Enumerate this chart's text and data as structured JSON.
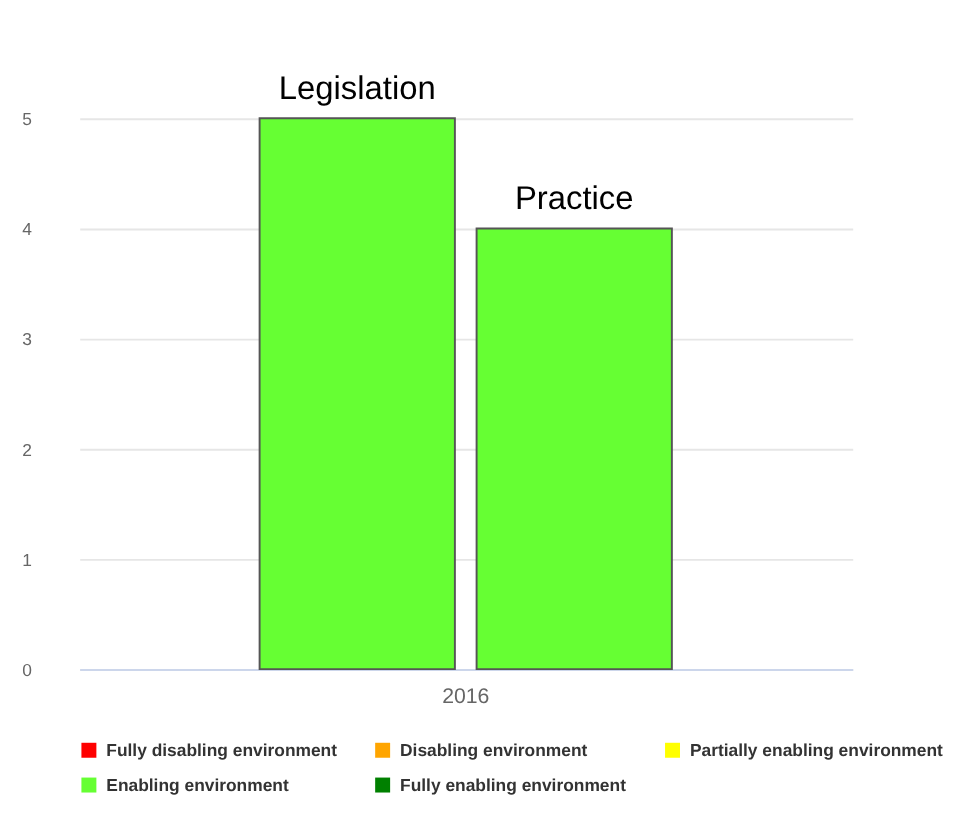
{
  "chart_data": {
    "type": "bar",
    "categories": [
      "2016"
    ],
    "series": [
      {
        "name": "Legislation",
        "color": "#66ff33",
        "values": [
          5
        ]
      },
      {
        "name": "Practice",
        "color": "#66ff33",
        "values": [
          4
        ]
      },
      {
        "name": "Fully disabling environment",
        "color": "#ff0000",
        "values": [
          null
        ]
      },
      {
        "name": "Disabling environment",
        "color": "#ffa500",
        "values": [
          null
        ]
      },
      {
        "name": "Partially enabling environment",
        "color": "#ffff00",
        "values": [
          null
        ]
      },
      {
        "name": "Enabling environment",
        "color": "#66ff33",
        "values": [
          null
        ]
      },
      {
        "name": "Fully enabling environment",
        "color": "#008000",
        "values": [
          null
        ]
      }
    ],
    "ylim": [
      0,
      5
    ],
    "yticks": [
      0,
      1,
      2,
      3,
      4,
      5
    ],
    "grid": "y",
    "legend": "bottom"
  }
}
